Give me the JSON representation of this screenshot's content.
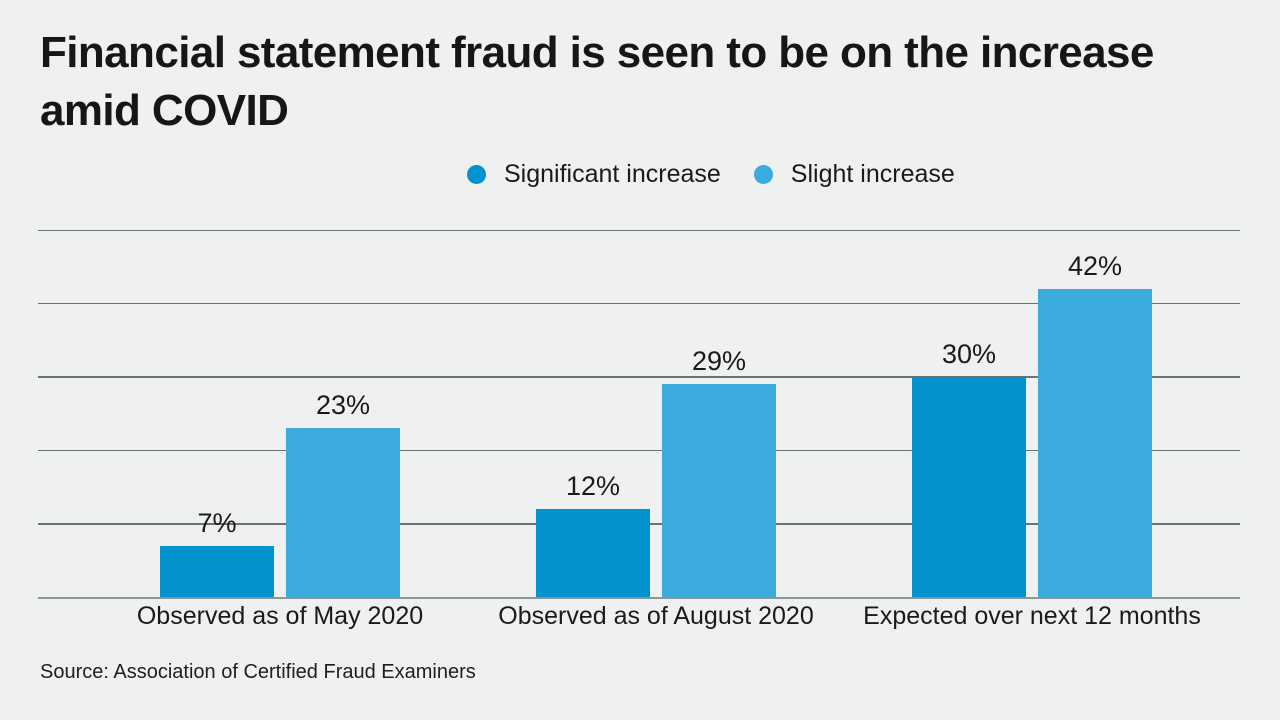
{
  "header": {
    "title": "Financial statement fraud is seen to be on the increase amid COVID"
  },
  "footer": {
    "source": "Source: Association of Certified Fraud Examiners"
  },
  "colors": {
    "background": "#eff1f1",
    "text": "#1a1a1a",
    "gridline": "#6d7272",
    "axis_line": "#8f9494",
    "significant_increase": "#0292ce",
    "slight_increase": "#3babde"
  },
  "chart_data": {
    "type": "bar",
    "title": "Financial statement fraud is seen to be on the increase amid COVID",
    "categories": [
      "Observed as of May 2020",
      "Observed as of August 2020",
      "Expected over next 12 months"
    ],
    "series": [
      {
        "name": "Significant increase",
        "color": "#0292ce",
        "values": [
          7,
          12,
          30
        ]
      },
      {
        "name": "Slight increase",
        "color": "#3babde",
        "values": [
          23,
          29,
          42
        ]
      }
    ],
    "value_suffix": "%",
    "xlabel": "",
    "ylabel": "",
    "ylim": [
      0,
      50
    ],
    "grid_interval": 10,
    "grid": "on",
    "y_tick_labels": "hidden",
    "legend_position": "top-center",
    "data_labels": "on",
    "source": "Source: Association of Certified Fraud Examiners"
  }
}
